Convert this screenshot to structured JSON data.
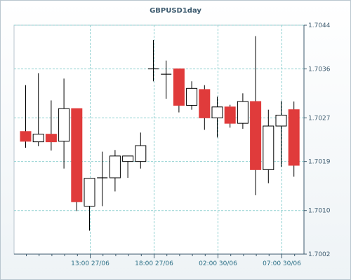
{
  "chart_data": {
    "type": "candlestick",
    "title": "GBPUSD1day",
    "ylim": [
      1.7002,
      1.7044
    ],
    "y_ticks": [
      "1.7002",
      "1.7010",
      "1.7019",
      "1.7027",
      "1.7036",
      "1.7044"
    ],
    "x_ticks": [
      "13:00 27/06",
      "18:00 27/06",
      "02:00 30/06",
      "07:00 30/06"
    ],
    "x_tick_candle_index": [
      5,
      10,
      15,
      20
    ],
    "grid": true,
    "colors": {
      "up_fill": "#ffffff",
      "down_fill": "#e03b3b",
      "wick": "#000000",
      "grid": "#8fd0d0"
    },
    "candles": [
      {
        "o": 1.70245,
        "h": 1.7033,
        "l": 1.70215,
        "c": 1.70227
      },
      {
        "o": 1.70226,
        "h": 1.70352,
        "l": 1.70218,
        "c": 1.7024
      },
      {
        "o": 1.7024,
        "h": 1.70302,
        "l": 1.7021,
        "c": 1.70226
      },
      {
        "o": 1.70227,
        "h": 1.70342,
        "l": 1.70177,
        "c": 1.70287
      },
      {
        "o": 1.70287,
        "h": 1.70287,
        "l": 1.70099,
        "c": 1.70116
      },
      {
        "o": 1.70108,
        "h": 1.70159,
        "l": 1.70063,
        "c": 1.70159
      },
      {
        "o": 1.7016,
        "h": 1.70208,
        "l": 1.70108,
        "c": 1.7016
      },
      {
        "o": 1.7016,
        "h": 1.70211,
        "l": 1.70135,
        "c": 1.702
      },
      {
        "o": 1.7019,
        "h": 1.702,
        "l": 1.7016,
        "c": 1.702
      },
      {
        "o": 1.7019,
        "h": 1.70243,
        "l": 1.70177,
        "c": 1.70219
      },
      {
        "o": 1.7036,
        "h": 1.70413,
        "l": 1.70337,
        "c": 1.7036
      },
      {
        "o": 1.7035,
        "h": 1.70375,
        "l": 1.70305,
        "c": 1.7035
      },
      {
        "o": 1.7036,
        "h": 1.7036,
        "l": 1.7028,
        "c": 1.70293
      },
      {
        "o": 1.70293,
        "h": 1.70337,
        "l": 1.70285,
        "c": 1.70324
      },
      {
        "o": 1.70322,
        "h": 1.7033,
        "l": 1.70248,
        "c": 1.7027
      },
      {
        "o": 1.7027,
        "h": 1.70309,
        "l": 1.70234,
        "c": 1.7029
      },
      {
        "o": 1.7029,
        "h": 1.70294,
        "l": 1.70252,
        "c": 1.7026
      },
      {
        "o": 1.7026,
        "h": 1.70315,
        "l": 1.7025,
        "c": 1.703
      },
      {
        "o": 1.703,
        "h": 1.7042,
        "l": 1.70128,
        "c": 1.70175
      },
      {
        "o": 1.70175,
        "h": 1.70285,
        "l": 1.7015,
        "c": 1.70255
      },
      {
        "o": 1.70255,
        "h": 1.70301,
        "l": 1.7018,
        "c": 1.70275
      },
      {
        "o": 1.70285,
        "h": 1.703,
        "l": 1.70162,
        "c": 1.70183
      }
    ]
  }
}
